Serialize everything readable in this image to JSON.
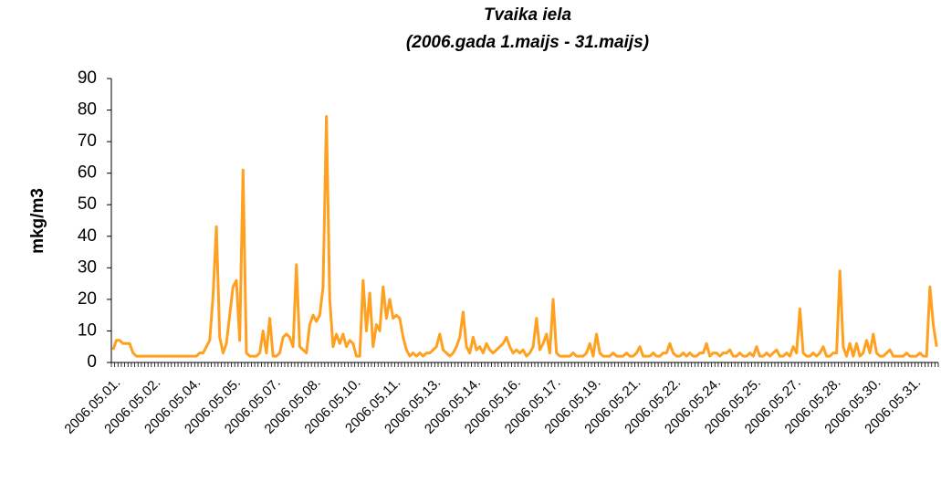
{
  "chart_data": {
    "type": "line",
    "title": [
      "Tvaika iela",
      "(2006.gada 1.maijs - 31.maijs)"
    ],
    "y_label": "mkg/m3",
    "categories": [
      "2006.05.01.",
      null,
      null,
      null,
      null,
      null,
      null,
      null,
      null,
      null,
      null,
      null,
      "2006.05.02.",
      null,
      null,
      null,
      null,
      null,
      null,
      null,
      null,
      null,
      null,
      null,
      "2006.05.04.",
      null,
      null,
      null,
      null,
      null,
      null,
      null,
      null,
      null,
      null,
      null,
      "2006.05.05.",
      null,
      null,
      null,
      null,
      null,
      null,
      null,
      null,
      null,
      null,
      null,
      "2006.05.07.",
      null,
      null,
      null,
      null,
      null,
      null,
      null,
      null,
      null,
      null,
      null,
      "2006.05.08.",
      null,
      null,
      null,
      null,
      null,
      null,
      null,
      null,
      null,
      null,
      null,
      "2006.05.10.",
      null,
      null,
      null,
      null,
      null,
      null,
      null,
      null,
      null,
      null,
      null,
      "2006.05.11.",
      null,
      null,
      null,
      null,
      null,
      null,
      null,
      null,
      null,
      null,
      null,
      "2006.05.13.",
      null,
      null,
      null,
      null,
      null,
      null,
      null,
      null,
      null,
      null,
      null,
      "2006.05.14.",
      null,
      null,
      null,
      null,
      null,
      null,
      null,
      null,
      null,
      null,
      null,
      "2006.05.16.",
      null,
      null,
      null,
      null,
      null,
      null,
      null,
      null,
      null,
      null,
      null,
      "2006.05.17.",
      null,
      null,
      null,
      null,
      null,
      null,
      null,
      null,
      null,
      null,
      null,
      "2006.05.19.",
      null,
      null,
      null,
      null,
      null,
      null,
      null,
      null,
      null,
      null,
      null,
      "2006.05.21.",
      null,
      null,
      null,
      null,
      null,
      null,
      null,
      null,
      null,
      null,
      null,
      "2006.05.22.",
      null,
      null,
      null,
      null,
      null,
      null,
      null,
      null,
      null,
      null,
      null,
      "2006.05.24.",
      null,
      null,
      null,
      null,
      null,
      null,
      null,
      null,
      null,
      null,
      null,
      "2006.05.25.",
      null,
      null,
      null,
      null,
      null,
      null,
      null,
      null,
      null,
      null,
      null,
      "2006.05.27.",
      null,
      null,
      null,
      null,
      null,
      null,
      null,
      null,
      null,
      null,
      null,
      "2006.05.28.",
      null,
      null,
      null,
      null,
      null,
      null,
      null,
      null,
      null,
      null,
      null,
      "2006.05.30.",
      null,
      null,
      null,
      null,
      null,
      null,
      null,
      null,
      null,
      null,
      null,
      "2006.05.31.",
      null,
      null,
      null,
      null,
      null,
      null,
      null
    ],
    "series": [
      {
        "name": "Tvaika iela",
        "color": "#ffa020",
        "values": [
          4,
          7,
          7,
          6,
          6,
          6,
          3,
          2,
          2,
          2,
          2,
          2,
          2,
          2,
          2,
          2,
          2,
          2,
          2,
          2,
          2,
          2,
          2,
          2,
          2,
          2,
          3,
          3,
          5,
          7,
          21,
          43,
          8,
          3,
          6,
          15,
          24,
          26,
          7,
          61,
          3,
          2,
          2,
          2,
          3,
          10,
          3,
          14,
          2,
          2,
          3,
          8,
          9,
          8,
          5,
          31,
          5,
          4,
          3,
          12,
          15,
          13,
          15,
          24,
          78,
          20,
          5,
          9,
          6,
          9,
          5,
          7,
          6,
          2,
          2,
          26,
          10,
          22,
          5,
          12,
          10,
          24,
          14,
          20,
          14,
          15,
          14,
          8,
          4,
          2,
          3,
          2,
          3,
          2,
          3,
          3,
          4,
          5,
          9,
          4,
          3,
          2,
          3,
          5,
          8,
          16,
          5,
          3,
          8,
          4,
          5,
          3,
          6,
          4,
          3,
          4,
          5,
          6,
          8,
          5,
          3,
          4,
          3,
          4,
          2,
          3,
          5,
          14,
          4,
          6,
          9,
          3,
          20,
          3,
          2,
          2,
          2,
          2,
          3,
          2,
          2,
          2,
          3,
          6,
          2,
          9,
          3,
          2,
          2,
          2,
          3,
          2,
          2,
          2,
          3,
          2,
          2,
          3,
          5,
          2,
          2,
          2,
          3,
          2,
          2,
          3,
          3,
          6,
          3,
          2,
          2,
          3,
          2,
          3,
          2,
          2,
          3,
          3,
          6,
          2,
          3,
          3,
          2,
          3,
          3,
          4,
          2,
          2,
          3,
          2,
          2,
          3,
          2,
          5,
          2,
          2,
          3,
          2,
          3,
          4,
          2,
          2,
          3,
          2,
          5,
          3,
          17,
          3,
          2,
          2,
          3,
          2,
          3,
          5,
          2,
          2,
          3,
          3,
          29,
          5,
          2,
          6,
          2,
          6,
          2,
          3,
          7,
          3,
          9,
          3,
          2,
          2,
          3,
          4,
          2,
          2,
          2,
          2,
          3,
          2,
          2,
          2,
          3,
          2,
          2,
          24,
          12,
          5
        ]
      }
    ],
    "ylim": [
      0,
      90
    ],
    "yticks": [
      0,
      10,
      20,
      30,
      40,
      50,
      60,
      70,
      80,
      90
    ],
    "grid": false
  }
}
